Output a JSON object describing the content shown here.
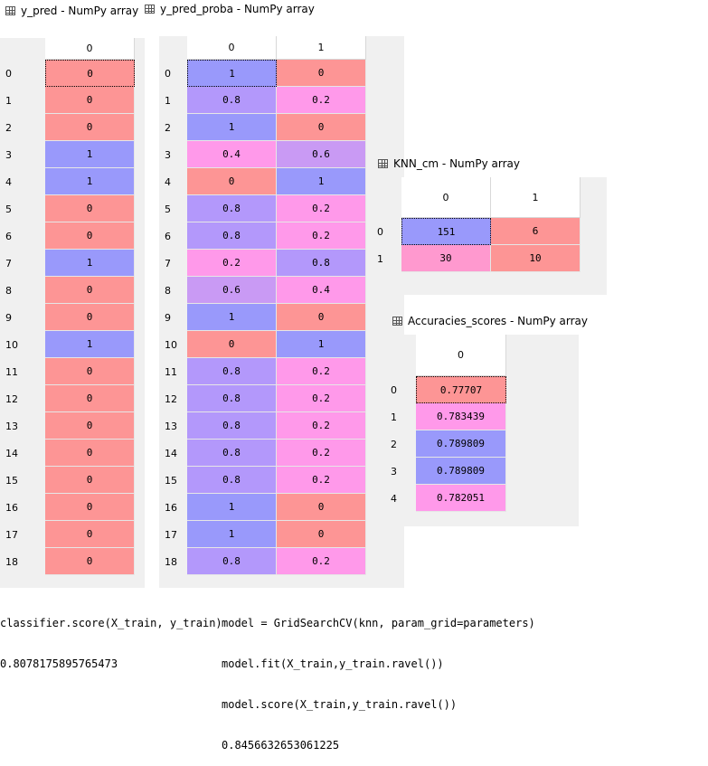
{
  "colors": {
    "red": "#fd9595",
    "blue": "#9999fb",
    "pink": "#ff99ea",
    "violet": "#b398fb",
    "rose": "#ff99cf",
    "mauve": "#c99af4"
  },
  "y_pred": {
    "title": "y_pred - NumPy array",
    "columns": [
      "0"
    ],
    "row_labels": [
      "0",
      "1",
      "2",
      "3",
      "4",
      "5",
      "6",
      "7",
      "8",
      "9",
      "10",
      "11",
      "12",
      "13",
      "14",
      "15",
      "16",
      "17",
      "18"
    ],
    "values": [
      "0",
      "0",
      "0",
      "1",
      "1",
      "0",
      "0",
      "1",
      "0",
      "0",
      "1",
      "0",
      "0",
      "0",
      "0",
      "0",
      "0",
      "0",
      "0"
    ]
  },
  "y_pred_proba": {
    "title": "y_pred_proba - NumPy array",
    "columns": [
      "0",
      "1"
    ],
    "row_labels": [
      "0",
      "1",
      "2",
      "3",
      "4",
      "5",
      "6",
      "7",
      "8",
      "9",
      "10",
      "11",
      "12",
      "13",
      "14",
      "15",
      "16",
      "17",
      "18"
    ],
    "rows": [
      [
        "1",
        "0"
      ],
      [
        "0.8",
        "0.2"
      ],
      [
        "1",
        "0"
      ],
      [
        "0.4",
        "0.6"
      ],
      [
        "0",
        "1"
      ],
      [
        "0.8",
        "0.2"
      ],
      [
        "0.8",
        "0.2"
      ],
      [
        "0.2",
        "0.8"
      ],
      [
        "0.6",
        "0.4"
      ],
      [
        "1",
        "0"
      ],
      [
        "0",
        "1"
      ],
      [
        "0.8",
        "0.2"
      ],
      [
        "0.8",
        "0.2"
      ],
      [
        "0.8",
        "0.2"
      ],
      [
        "0.8",
        "0.2"
      ],
      [
        "0.8",
        "0.2"
      ],
      [
        "1",
        "0"
      ],
      [
        "1",
        "0"
      ],
      [
        "0.8",
        "0.2"
      ]
    ]
  },
  "knn_cm": {
    "title": "KNN_cm - NumPy array",
    "columns": [
      "0",
      "1"
    ],
    "row_labels": [
      "0",
      "1"
    ],
    "rows": [
      [
        "151",
        "6"
      ],
      [
        "30",
        "10"
      ]
    ]
  },
  "accuracies": {
    "title": "Accuracies_scores - NumPy array",
    "columns": [
      "0"
    ],
    "row_labels": [
      "0",
      "1",
      "2",
      "3",
      "4"
    ],
    "values": [
      "0.77707",
      "0.783439",
      "0.789809",
      "0.789809",
      "0.782051"
    ]
  },
  "console": {
    "left_lines": [
      "classifier.score(X_train, y_train)",
      "0.8078175895765473"
    ],
    "right_lines": [
      "model = GridSearchCV(knn, param_grid=parameters)",
      "model.fit(X_train,y_train.ravel())",
      "model.score(X_train,y_train.ravel())",
      "0.8456632653061225"
    ]
  }
}
